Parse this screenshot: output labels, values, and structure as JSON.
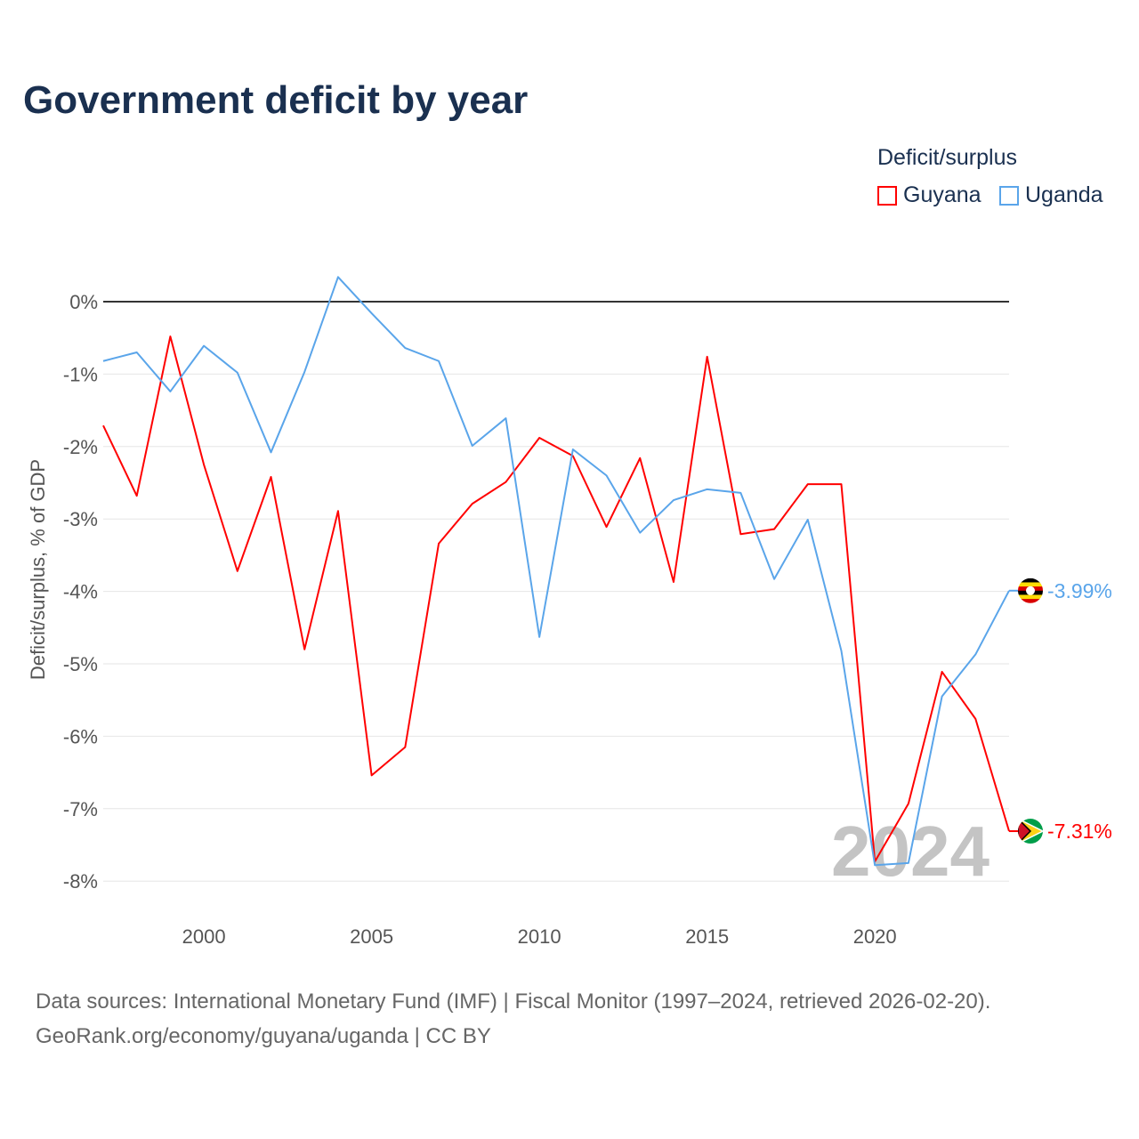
{
  "title": "Government deficit by year",
  "legend": {
    "title": "Deficit/surplus",
    "items": [
      {
        "name": "Guyana",
        "color": "#ff0000"
      },
      {
        "name": "Uganda",
        "color": "#5aa5ea"
      }
    ]
  },
  "watermark_year": "2024",
  "footer": {
    "line1": "Data sources: International Monetary Fund (IMF) | Fiscal Monitor (1997–2024, retrieved 2026-02-20).",
    "line2": "GeoRank.org/economy/guyana/uganda | CC BY"
  },
  "chart_data": {
    "type": "line",
    "title": "Government deficit by year",
    "xlabel": "",
    "ylabel": "Deficit/surplus, % of GDP",
    "xlim": [
      1997,
      2024
    ],
    "ylim": [
      -8,
      0
    ],
    "x_ticks": [
      2000,
      2005,
      2010,
      2015,
      2020
    ],
    "y_ticks": [
      0,
      -1,
      -2,
      -3,
      -4,
      -5,
      -6,
      -7,
      -8
    ],
    "y_tick_labels": [
      "0%",
      "-1%",
      "-2%",
      "-3%",
      "-4%",
      "-5%",
      "-6%",
      "-7%",
      "-8%"
    ],
    "x": [
      1997,
      1998,
      1999,
      2000,
      2001,
      2002,
      2003,
      2004,
      2005,
      2006,
      2007,
      2008,
      2009,
      2010,
      2011,
      2012,
      2013,
      2014,
      2015,
      2016,
      2017,
      2018,
      2019,
      2020,
      2021,
      2022,
      2023,
      2024
    ],
    "series": [
      {
        "name": "Guyana",
        "color": "#ff0000",
        "end_label": "-7.31%",
        "values": [
          -1.71,
          -2.68,
          -0.48,
          -2.25,
          -3.72,
          -2.42,
          -4.8,
          -2.89,
          -6.54,
          -6.15,
          -3.34,
          -2.79,
          -2.49,
          -1.88,
          -2.13,
          -3.11,
          -2.16,
          -3.87,
          -0.76,
          -3.21,
          -3.14,
          -2.52,
          -2.52,
          -7.73,
          -6.93,
          -5.11,
          -5.76,
          -7.31
        ]
      },
      {
        "name": "Uganda",
        "color": "#5aa5ea",
        "end_label": "-3.99%",
        "values": [
          -0.82,
          -0.7,
          -1.24,
          -0.61,
          -0.98,
          -2.08,
          -0.97,
          0.34,
          -0.16,
          -0.64,
          -0.82,
          -1.99,
          -1.61,
          -4.63,
          -2.04,
          -2.4,
          -3.19,
          -2.74,
          -2.59,
          -2.64,
          -3.83,
          -3.01,
          -4.82,
          -7.78,
          -7.75,
          -5.45,
          -4.87,
          -3.99
        ]
      }
    ],
    "grid": true,
    "legend_position": "top-right"
  }
}
